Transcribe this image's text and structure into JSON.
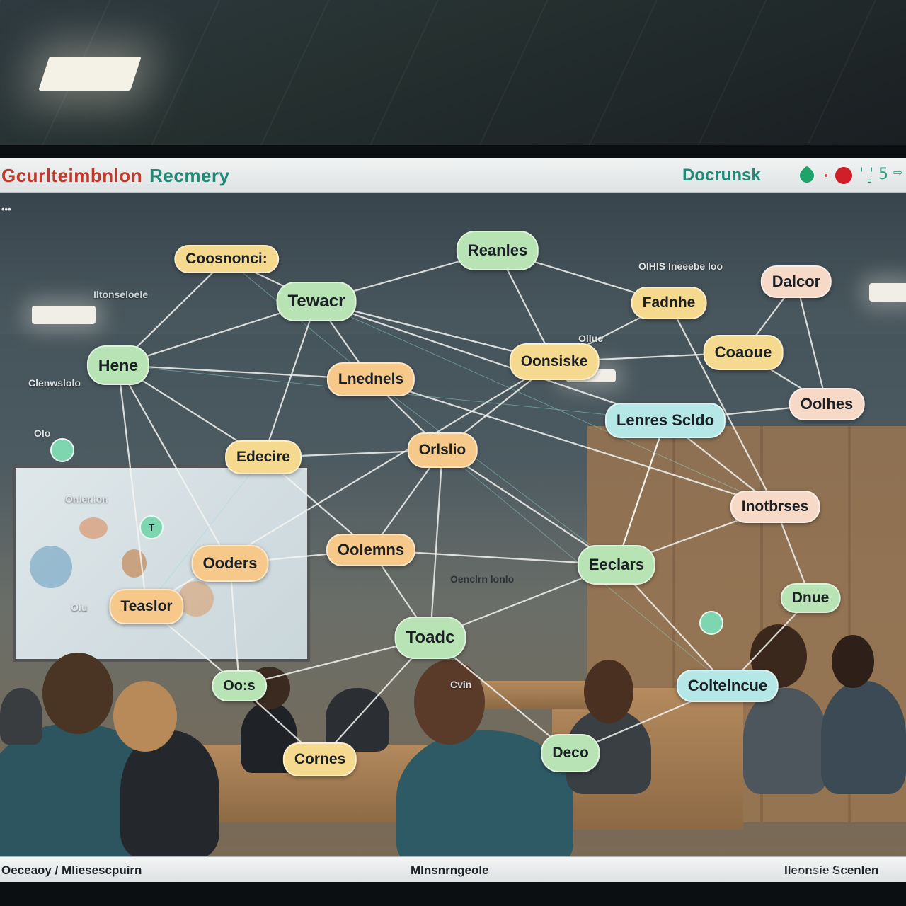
{
  "header": {
    "title_part1": "Gcurlteimbnlon",
    "title_part2": "Recmery",
    "doc_label": "Docrunsk",
    "status_glyph_1": "'",
    "status_glyph_2": "'͇ 5",
    "status_glyph_3": "⇨"
  },
  "corner_label": "•••",
  "graph": {
    "nodes": [
      {
        "id": "n1",
        "label": "Coosnonci:",
        "color": "yellow"
      },
      {
        "id": "n2",
        "label": "Reanles",
        "color": "green"
      },
      {
        "id": "n3",
        "label": "Tewacr",
        "color": "green"
      },
      {
        "id": "n4",
        "label": "Fadnhe",
        "color": "yellow"
      },
      {
        "id": "n5",
        "label": "Dalcor",
        "color": "peach"
      },
      {
        "id": "n6",
        "label": "Hene",
        "color": "green"
      },
      {
        "id": "n7",
        "label": "Lnednels",
        "color": "orange"
      },
      {
        "id": "n8",
        "label": "Oonsiske",
        "color": "yellow"
      },
      {
        "id": "n9",
        "label": "Coaoue",
        "color": "yellow"
      },
      {
        "id": "n10",
        "label": "Lenres  Scldo",
        "color": "cyan"
      },
      {
        "id": "n11",
        "label": "Oolhes",
        "color": "peach"
      },
      {
        "id": "n12",
        "label": "Edecire",
        "color": "yellow"
      },
      {
        "id": "n13",
        "label": "Orlslio",
        "color": "orange"
      },
      {
        "id": "n14",
        "label": "Inotbrses",
        "color": "peach"
      },
      {
        "id": "n15",
        "label": "Ooders",
        "color": "orange"
      },
      {
        "id": "n16",
        "label": "Oolemns",
        "color": "orange"
      },
      {
        "id": "n17",
        "label": "Eeclars",
        "color": "green"
      },
      {
        "id": "n18",
        "label": "Teaslor",
        "color": "orange"
      },
      {
        "id": "n19",
        "label": "Dnue",
        "color": "green"
      },
      {
        "id": "n20",
        "label": "Toadc",
        "color": "green"
      },
      {
        "id": "n21",
        "label": "Oo:s",
        "color": "green"
      },
      {
        "id": "n22",
        "label": "Coltelncue",
        "color": "cyan"
      },
      {
        "id": "n23",
        "label": "Cornes",
        "color": "yellow"
      },
      {
        "id": "n24",
        "label": "Deco",
        "color": "green"
      }
    ],
    "small_markers": [
      {
        "id": "m1",
        "label": "T"
      },
      {
        "id": "m2",
        "label": ""
      },
      {
        "id": "m3",
        "label": ""
      }
    ],
    "annotations": {
      "a1": "OlHIS lneeebe loo",
      "a2": "Iltonseloele",
      "a3": "Clenwslolo",
      "a4": "Olo",
      "a5": "Onlenlon",
      "a6": "Oenclrn lonlo",
      "a7": "Olu",
      "a8": "Cvin",
      "a9": "Ollue"
    }
  },
  "statusbar": {
    "left": "Oeceaoy / Mliesescpuirn",
    "center": "Mlnsnrngeole",
    "right": "Ileonsie Scenlen"
  },
  "watermark": "Meta AI"
}
